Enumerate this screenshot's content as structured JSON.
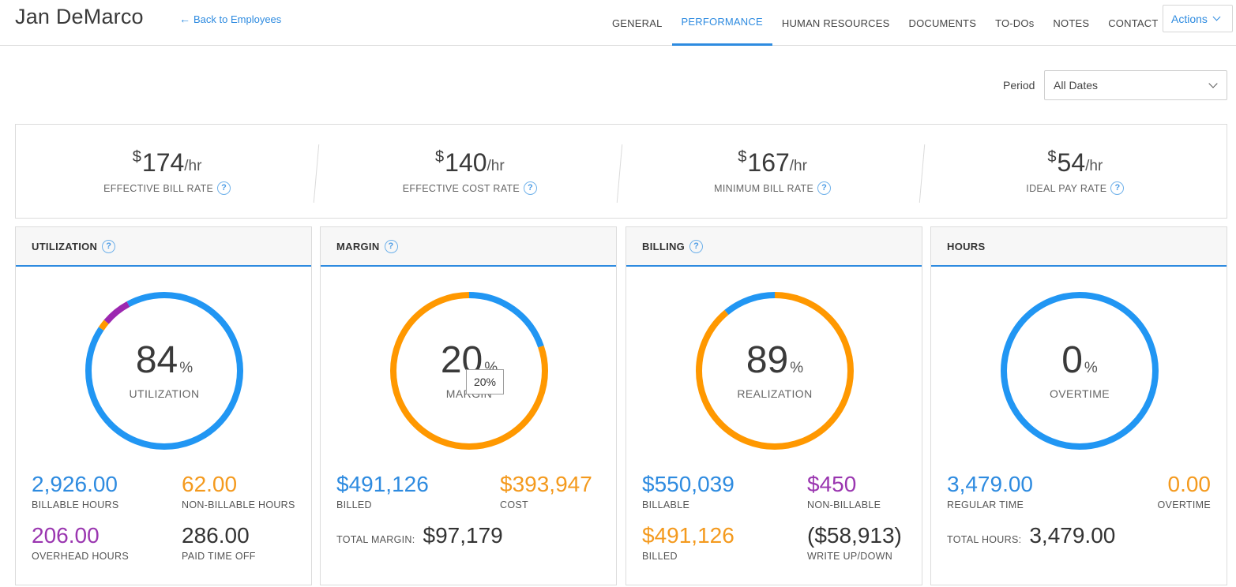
{
  "header": {
    "employee_name": "Jan DeMarco",
    "back_link": "Back to Employees",
    "tabs": [
      {
        "label": "GENERAL"
      },
      {
        "label": "PERFORMANCE"
      },
      {
        "label": "HUMAN RESOURCES"
      },
      {
        "label": "DOCUMENTS"
      },
      {
        "label": "TO-DOs"
      },
      {
        "label": "NOTES"
      },
      {
        "label": "CONTACT"
      }
    ],
    "active_tab": "PERFORMANCE",
    "actions_label": "Actions"
  },
  "period": {
    "label": "Period",
    "selected": "All Dates"
  },
  "rates": [
    {
      "currency": "$",
      "value": "174",
      "unit": "/hr",
      "label": "EFFECTIVE BILL RATE"
    },
    {
      "currency": "$",
      "value": "140",
      "unit": "/hr",
      "label": "EFFECTIVE COST RATE"
    },
    {
      "currency": "$",
      "value": "167",
      "unit": "/hr",
      "label": "MINIMUM BILL RATE"
    },
    {
      "currency": "$",
      "value": "54",
      "unit": "/hr",
      "label": "IDEAL PAY RATE"
    }
  ],
  "cards": {
    "utilization": {
      "title": "UTILIZATION",
      "gauge_value": "84",
      "gauge_unit": "%",
      "gauge_label": "UTILIZATION",
      "segments": [
        {
          "name": "billable",
          "fraction": 0.8435,
          "color": "#2196f3"
        },
        {
          "name": "non-billable",
          "fraction": 0.0179,
          "color": "#ff9800"
        },
        {
          "name": "overhead",
          "fraction": 0.0594,
          "color": "#9c27b0"
        },
        {
          "name": "paid-time-off",
          "fraction": 0.0792,
          "color": "#2196f3"
        }
      ],
      "stats": {
        "billable_hours": {
          "value": "2,926.00",
          "label": "BILLABLE HOURS"
        },
        "non_billable_hours": {
          "value": "62.00",
          "label": "NON-BILLABLE HOURS"
        },
        "overhead_hours": {
          "value": "206.00",
          "label": "OVERHEAD HOURS"
        },
        "paid_time_off": {
          "value": "286.00",
          "label": "PAID TIME OFF"
        }
      }
    },
    "margin": {
      "title": "MARGIN",
      "gauge_value": "20",
      "gauge_unit": "%",
      "gauge_label": "MARGIN",
      "tooltip": "20%",
      "segments": [
        {
          "name": "margin",
          "fraction": 0.198,
          "color": "#2196f3"
        },
        {
          "name": "cost",
          "fraction": 0.802,
          "color": "#ff9800"
        }
      ],
      "stats": {
        "billed": {
          "value": "$491,126",
          "label": "BILLED"
        },
        "cost": {
          "value": "$393,947",
          "label": "COST"
        }
      },
      "total": {
        "label": "TOTAL MARGIN:",
        "value": "$97,179"
      }
    },
    "billing": {
      "title": "BILLING",
      "gauge_value": "89",
      "gauge_unit": "%",
      "gauge_label": "REALIZATION",
      "segments": [
        {
          "name": "billed",
          "fraction": 0.89,
          "color": "#ff9800"
        },
        {
          "name": "write-down",
          "fraction": 0.11,
          "color": "#2196f3"
        }
      ],
      "stats": {
        "billable": {
          "value": "$550,039",
          "label": "BILLABLE"
        },
        "non_billable": {
          "value": "$450",
          "label": "NON-BILLABLE"
        },
        "billed": {
          "value": "$491,126",
          "label": "BILLED"
        },
        "write_up_down": {
          "value": "($58,913)",
          "label": "WRITE UP/DOWN"
        }
      }
    },
    "hours": {
      "title": "HOURS",
      "gauge_value": "0",
      "gauge_unit": "%",
      "gauge_label": "OVERTIME",
      "segments": [
        {
          "name": "regular",
          "fraction": 1.0,
          "color": "#2196f3"
        }
      ],
      "stats": {
        "regular_time": {
          "value": "3,479.00",
          "label": "REGULAR TIME"
        },
        "overtime": {
          "value": "0.00",
          "label": "OVERTIME"
        }
      },
      "total": {
        "label": "TOTAL HOURS:",
        "value": "3,479.00"
      }
    }
  }
}
